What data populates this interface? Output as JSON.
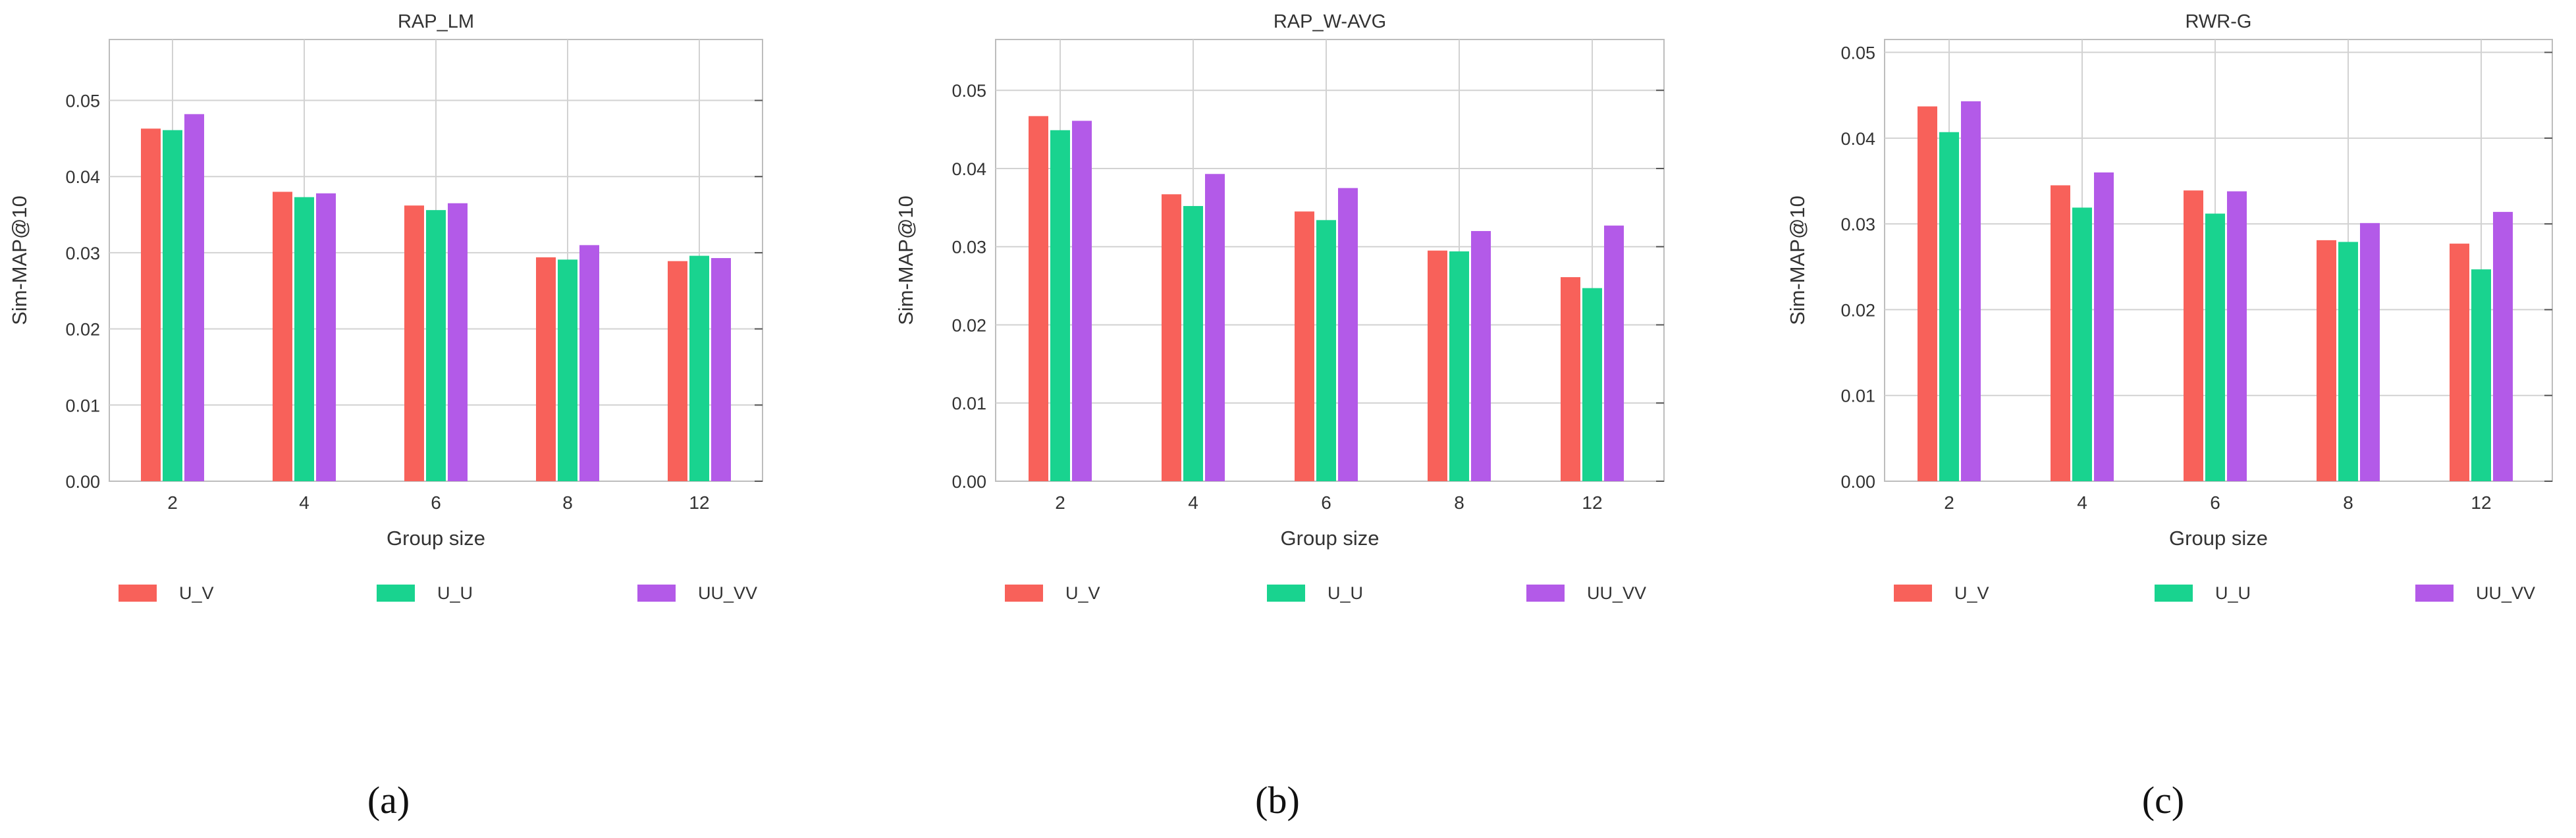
{
  "figure": {
    "colors": {
      "U_V": "#f8615a",
      "U_U": "#19d38f",
      "UU_VV": "#b35ae8",
      "grid": "#d2d2d2",
      "axis": "#555555"
    }
  },
  "chart_data": [
    {
      "type": "bar",
      "title": "RAP_LM",
      "caption": "(a)",
      "xlabel": "Group size",
      "ylabel": "Sim-MAP@10",
      "categories": [
        "2",
        "4",
        "6",
        "8",
        "12"
      ],
      "ylim": [
        0,
        0.058
      ],
      "yticks": [
        0.0,
        0.01,
        0.02,
        0.03,
        0.04,
        0.05
      ],
      "ytick_labels": [
        "0.00",
        "0.01",
        "0.02",
        "0.03",
        "0.04",
        "0.05"
      ],
      "grid": true,
      "legend_position": "bottom",
      "series": [
        {
          "name": "U_V",
          "values": [
            0.0463,
            0.038,
            0.0362,
            0.0294,
            0.0289
          ]
        },
        {
          "name": "U_U",
          "values": [
            0.0461,
            0.0373,
            0.0356,
            0.0291,
            0.0296
          ]
        },
        {
          "name": "UU_VV",
          "values": [
            0.0482,
            0.0378,
            0.0365,
            0.031,
            0.0293
          ]
        }
      ]
    },
    {
      "type": "bar",
      "title": "RAP_W-AVG",
      "caption": "(b)",
      "xlabel": "Group size",
      "ylabel": "Sim-MAP@10",
      "categories": [
        "2",
        "4",
        "6",
        "8",
        "12"
      ],
      "ylim": [
        0,
        0.0565
      ],
      "yticks": [
        0.0,
        0.01,
        0.02,
        0.03,
        0.04,
        0.05
      ],
      "ytick_labels": [
        "0.00",
        "0.01",
        "0.02",
        "0.03",
        "0.04",
        "0.05"
      ],
      "grid": true,
      "legend_position": "bottom",
      "series": [
        {
          "name": "U_V",
          "values": [
            0.0467,
            0.0367,
            0.0345,
            0.0295,
            0.0261
          ]
        },
        {
          "name": "U_U",
          "values": [
            0.0449,
            0.0352,
            0.0334,
            0.0294,
            0.0247
          ]
        },
        {
          "name": "UU_VV",
          "values": [
            0.0461,
            0.0393,
            0.0375,
            0.032,
            0.0327
          ]
        }
      ]
    },
    {
      "type": "bar",
      "title": "RWR-G",
      "caption": "(c)",
      "xlabel": "Group size",
      "ylabel": "Sim-MAP@10",
      "categories": [
        "2",
        "4",
        "6",
        "8",
        "12"
      ],
      "ylim": [
        0,
        0.0515
      ],
      "yticks": [
        0.0,
        0.01,
        0.02,
        0.03,
        0.04,
        0.05
      ],
      "ytick_labels": [
        "0.00",
        "0.01",
        "0.02",
        "0.03",
        "0.04",
        "0.05"
      ],
      "grid": true,
      "legend_position": "bottom",
      "series": [
        {
          "name": "U_V",
          "values": [
            0.0437,
            0.0345,
            0.0339,
            0.0281,
            0.0277
          ]
        },
        {
          "name": "U_U",
          "values": [
            0.0407,
            0.0319,
            0.0312,
            0.0279,
            0.0247
          ]
        },
        {
          "name": "UU_VV",
          "values": [
            0.0443,
            0.036,
            0.0338,
            0.0301,
            0.0314
          ]
        }
      ]
    }
  ]
}
